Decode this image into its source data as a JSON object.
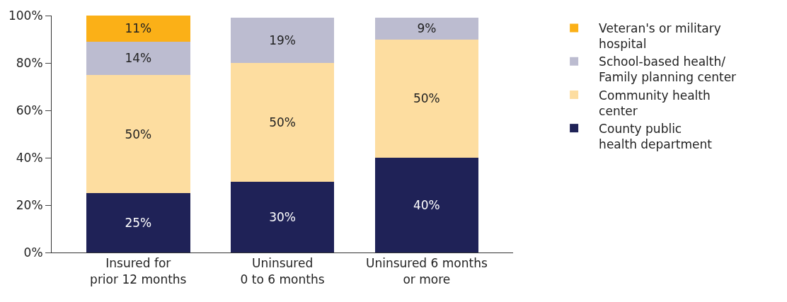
{
  "chart_data": {
    "type": "bar",
    "stacked": true,
    "legend": "right",
    "categories": [
      "Insured for\nprior 12 months",
      "Uninsured\n0 to 6 months",
      "Uninsured 6 months\nor more"
    ],
    "ylim": [
      0,
      100
    ],
    "yticks": [
      {
        "value": 0,
        "label": "0%"
      },
      {
        "value": 20,
        "label": "20%"
      },
      {
        "value": 40,
        "label": "40%"
      },
      {
        "value": 60,
        "label": "60%"
      },
      {
        "value": 80,
        "label": "80%"
      },
      {
        "value": 100,
        "label": "100%"
      }
    ],
    "series": [
      {
        "name": "County public\nhealth department",
        "color": "#1f2257",
        "values": [
          25,
          30,
          40
        ],
        "value_labels": [
          "25%",
          "30%",
          "40%"
        ]
      },
      {
        "name": "Community health\ncenter",
        "color": "#fddda0",
        "values": [
          50,
          50,
          50
        ],
        "value_labels": [
          "50%",
          "50%",
          "50%"
        ]
      },
      {
        "name": "School-based health/\nFamily planning center",
        "color": "#bcbcd0",
        "values": [
          14,
          19,
          9
        ],
        "value_labels": [
          "14%",
          "19%",
          "9%"
        ]
      },
      {
        "name": "Veteran's or military\nhospital",
        "color": "#fbb017",
        "values": [
          11,
          null,
          null
        ],
        "value_labels": [
          "11%",
          null,
          null
        ]
      }
    ]
  }
}
